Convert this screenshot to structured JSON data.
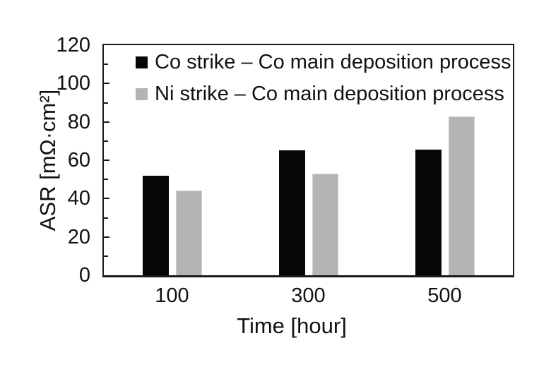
{
  "chart_data": {
    "type": "bar",
    "title": "",
    "xlabel": "Time [hour]",
    "ylabel": "ASR [mΩ·cm²]",
    "categories": [
      "100",
      "300",
      "500"
    ],
    "series": [
      {
        "name": "Co strike – Co main deposition process",
        "color": "#070707",
        "values": [
          52,
          65,
          65.5
        ]
      },
      {
        "name": "Ni strike – Co main deposition process",
        "color": "#b4b4b4",
        "values": [
          44,
          53,
          83
        ]
      }
    ],
    "ylim": [
      0,
      120
    ],
    "yticks": [
      0,
      20,
      40,
      60,
      80,
      100,
      120
    ],
    "yticks_minor": [
      10,
      30,
      50,
      70,
      90,
      110
    ],
    "grid": false,
    "legend_position": "top-left-inside",
    "axis_color": "#1a1a1a"
  }
}
